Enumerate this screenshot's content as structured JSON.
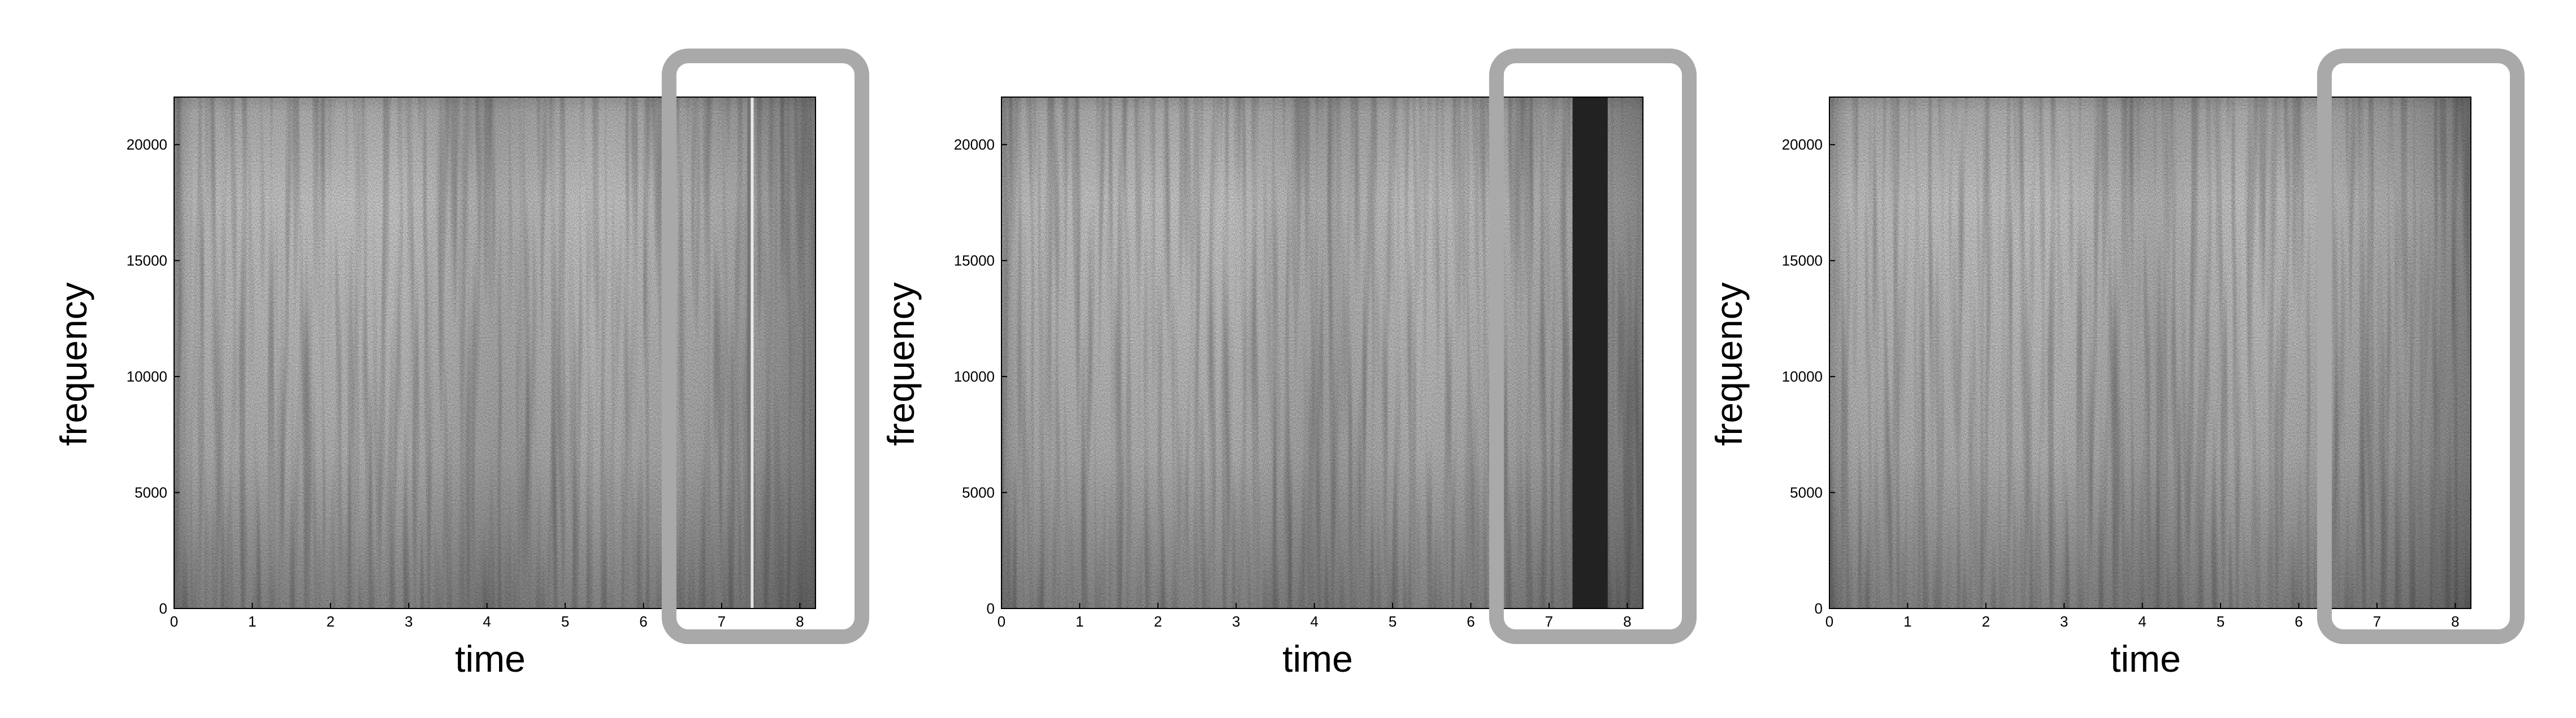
{
  "colors": {
    "background": "#ffffff",
    "spectrogram_light": "#d6d6d6",
    "spectrogram_dark": "#6e6e6e",
    "gap_fill": "#222222",
    "highlight_box": "#a9a9a9"
  },
  "chart_data": [
    {
      "type": "heatmap",
      "title": "",
      "xlabel": "time",
      "ylabel": "frequency",
      "xlim": [
        0,
        8.2
      ],
      "ylim": [
        0,
        22050
      ],
      "xticks": [
        "0",
        "1",
        "2",
        "3",
        "4",
        "5",
        "6",
        "7",
        "8"
      ],
      "yticks": [
        "0",
        "5000",
        "10000",
        "15000",
        "20000"
      ],
      "grid": false,
      "highlight_region": [
        6.4,
        8.2
      ],
      "gap_region": null,
      "discontinuity_at": 7.35
    },
    {
      "type": "heatmap",
      "title": "",
      "xlabel": "time",
      "ylabel": "frequency",
      "xlim": [
        0,
        8.2
      ],
      "ylim": [
        0,
        22050
      ],
      "xticks": [
        "0",
        "1",
        "2",
        "3",
        "4",
        "5",
        "6",
        "7",
        "8"
      ],
      "yticks": [
        "0",
        "5000",
        "10000",
        "15000",
        "20000"
      ],
      "grid": false,
      "highlight_region": [
        6.4,
        8.2
      ],
      "gap_region": [
        7.3,
        7.75
      ],
      "discontinuity_at": null
    },
    {
      "type": "heatmap",
      "title": "",
      "xlabel": "time",
      "ylabel": "frequency",
      "xlim": [
        0,
        8.2
      ],
      "ylim": [
        0,
        22050
      ],
      "xticks": [
        "0",
        "1",
        "2",
        "3",
        "4",
        "5",
        "6",
        "7",
        "8"
      ],
      "yticks": [
        "0",
        "5000",
        "10000",
        "15000",
        "20000"
      ],
      "grid": false,
      "highlight_region": [
        6.4,
        8.2
      ],
      "gap_region": null,
      "discontinuity_at": null
    }
  ]
}
